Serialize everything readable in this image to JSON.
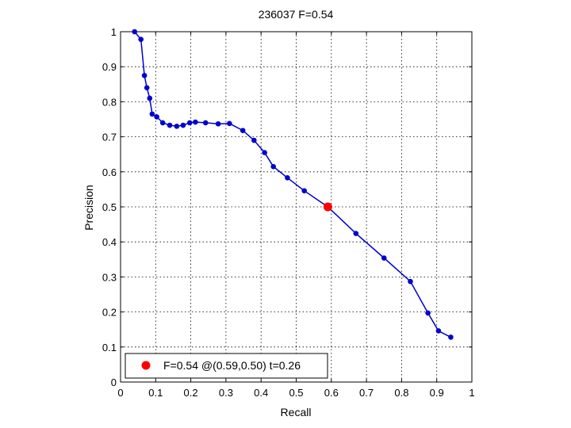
{
  "chart_data": {
    "type": "line",
    "title": "236037 F=0.54",
    "xlabel": "Recall",
    "ylabel": "Precision",
    "xlim": [
      0,
      1
    ],
    "ylim": [
      0,
      1
    ],
    "xticks": [
      "0",
      "0.1",
      "0.2",
      "0.3",
      "0.4",
      "0.5",
      "0.6",
      "0.7",
      "0.8",
      "0.9",
      "1"
    ],
    "yticks": [
      "0",
      "0.1",
      "0.2",
      "0.3",
      "0.4",
      "0.5",
      "0.6",
      "0.7",
      "0.8",
      "0.9",
      "1"
    ],
    "grid": true,
    "colors": {
      "series": "#0000cc",
      "highlight": "#ff0000"
    },
    "series": [
      {
        "x": [
          0.04,
          0.058,
          0.068,
          0.075,
          0.083,
          0.09,
          0.103,
          0.12,
          0.14,
          0.16,
          0.178,
          0.197,
          0.213,
          0.242,
          0.278,
          0.31,
          0.348,
          0.38,
          0.41,
          0.435,
          0.475,
          0.523,
          0.59,
          0.67,
          0.75,
          0.825,
          0.875,
          0.905,
          0.94
        ],
        "y": [
          1.0,
          0.978,
          0.875,
          0.84,
          0.81,
          0.765,
          0.757,
          0.74,
          0.733,
          0.73,
          0.733,
          0.74,
          0.742,
          0.74,
          0.737,
          0.738,
          0.718,
          0.69,
          0.655,
          0.615,
          0.583,
          0.546,
          0.5,
          0.424,
          0.354,
          0.287,
          0.197,
          0.146,
          0.128
        ]
      }
    ],
    "highlight_point": {
      "x": 0.59,
      "y": 0.5
    },
    "legend": {
      "position": "bottom-left",
      "label": "F=0.54 @(0.59,0.50) t=0.26"
    }
  }
}
